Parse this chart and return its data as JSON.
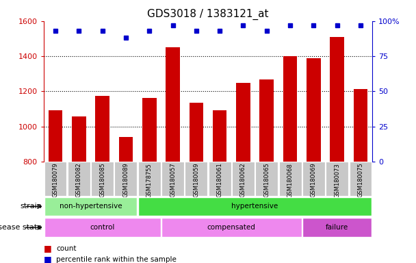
{
  "title": "GDS3018 / 1383121_at",
  "samples": [
    "GSM180079",
    "GSM180082",
    "GSM180085",
    "GSM180089",
    "GSM178755",
    "GSM180057",
    "GSM180059",
    "GSM180061",
    "GSM180062",
    "GSM180065",
    "GSM180068",
    "GSM180069",
    "GSM180073",
    "GSM180075"
  ],
  "counts": [
    1093,
    1057,
    1175,
    940,
    1163,
    1452,
    1137,
    1091,
    1249,
    1267,
    1400,
    1390,
    1510,
    1215
  ],
  "percentiles": [
    93,
    93,
    93,
    88,
    93,
    97,
    93,
    93,
    97,
    93,
    97,
    97,
    97,
    97
  ],
  "ylim_left": [
    800,
    1600
  ],
  "ylim_right": [
    0,
    100
  ],
  "yticks_left": [
    800,
    1000,
    1200,
    1400,
    1600
  ],
  "yticks_right": [
    0,
    25,
    50,
    75,
    100
  ],
  "yticklabels_right": [
    "0",
    "25",
    "50",
    "75",
    "100%"
  ],
  "grid_yticks": [
    1000,
    1200,
    1400
  ],
  "strain_groups": [
    {
      "label": "non-hypertensive",
      "start": 0,
      "end": 4,
      "color": "#99EE99"
    },
    {
      "label": "hypertensive",
      "start": 4,
      "end": 14,
      "color": "#44DD44"
    }
  ],
  "disease_groups": [
    {
      "label": "control",
      "start": 0,
      "end": 5,
      "color": "#EE88EE"
    },
    {
      "label": "compensated",
      "start": 5,
      "end": 11,
      "color": "#EE88EE"
    },
    {
      "label": "failure",
      "start": 11,
      "end": 14,
      "color": "#CC55CC"
    }
  ],
  "bar_color": "#CC0000",
  "dot_color": "#0000CC",
  "axis_left_color": "#CC0000",
  "axis_right_color": "#0000CC",
  "title_fontsize": 11,
  "tick_fontsize": 8,
  "sample_fontsize": 6,
  "annot_fontsize": 7.5,
  "legend_fontsize": 7.5,
  "bar_width": 0.6,
  "xtick_bg_color": "#C8C8C8",
  "legend_items": [
    {
      "color": "#CC0000",
      "label": "count"
    },
    {
      "color": "#0000CC",
      "label": "percentile rank within the sample"
    }
  ]
}
